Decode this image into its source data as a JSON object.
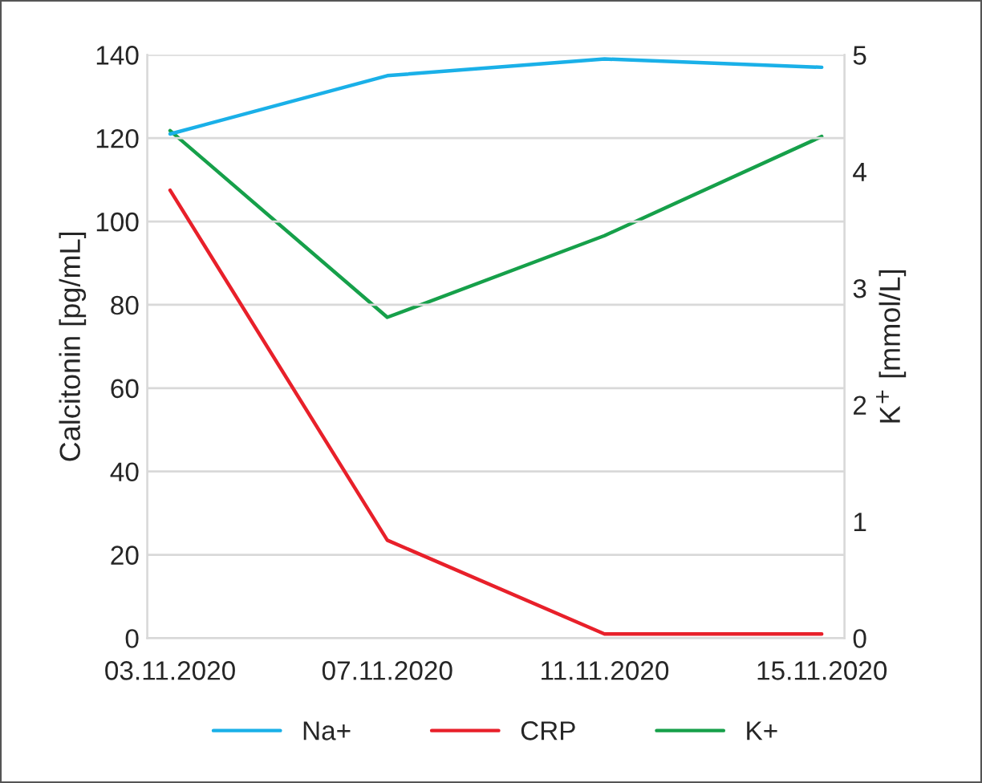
{
  "chart_data": {
    "type": "line",
    "xlabel": null,
    "ylabel": "Calcitonin [pg/mL]",
    "y2label": "K$^{+}$ [mmol/L]",
    "categories": [
      "03.11.2020",
      "07.11.2020",
      "11.11.2020",
      "15.11.2020"
    ],
    "series": [
      {
        "name": "Na+",
        "color": "#1ab0e8",
        "values": [
          121,
          135,
          139,
          137
        ]
      },
      {
        "name": "CRP",
        "color": "#e8202a",
        "values": [
          107.5,
          23.5,
          1,
          1
        ]
      },
      {
        "name": "K+",
        "color": "#16a04a",
        "values": [
          4.35,
          2.75,
          3.45,
          4.3
        ],
        "axis": "y2"
      }
    ],
    "ylim": [
      0,
      140
    ],
    "yticks": [
      0,
      20,
      40,
      60,
      80,
      100,
      120,
      140
    ],
    "y2lim": [
      0,
      5
    ],
    "y2ticks": [
      0,
      1,
      2,
      3,
      4,
      5
    ],
    "grid": "y",
    "legend": "bottom",
    "marker": "none",
    "line_style": "solid"
  }
}
